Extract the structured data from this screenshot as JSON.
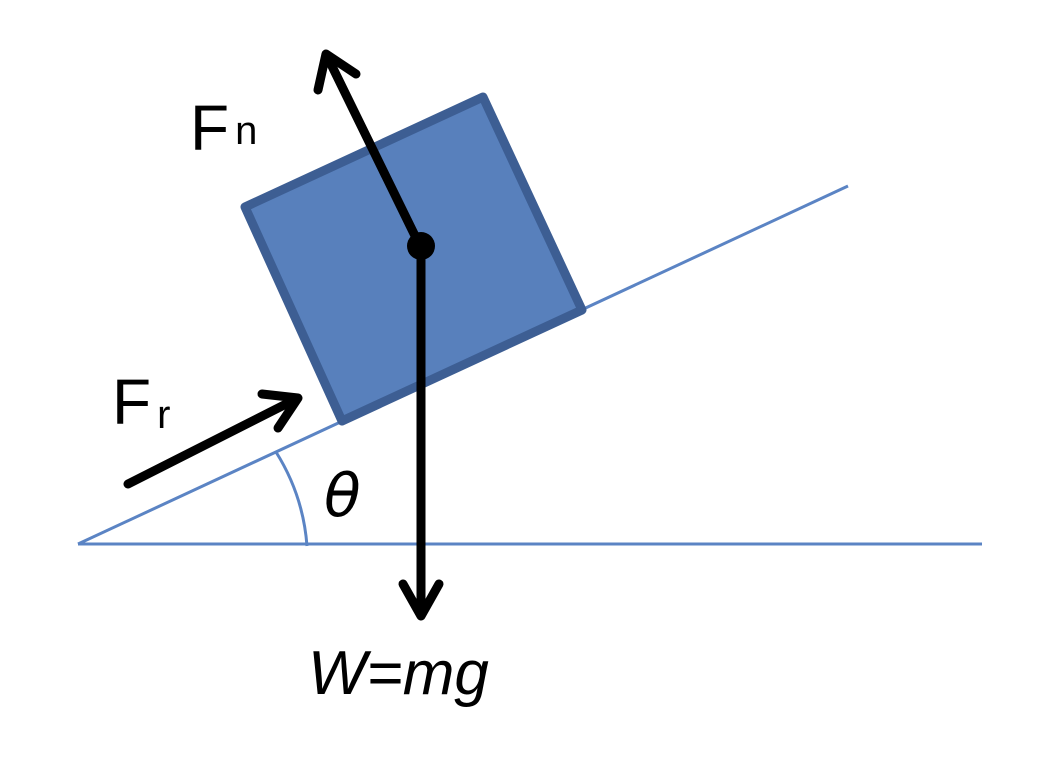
{
  "diagram": {
    "forces": {
      "normal": {
        "symbol": "F",
        "subscript": "n"
      },
      "friction": {
        "symbol": "F",
        "subscript": "r"
      },
      "weight": {
        "label": "W=mg"
      }
    },
    "angle": {
      "symbol": "θ"
    }
  },
  "colors": {
    "block_fill": "#5880BC",
    "block_stroke": "#3D5E93",
    "incline_line": "#5B84C4",
    "arrow": "#000000"
  }
}
